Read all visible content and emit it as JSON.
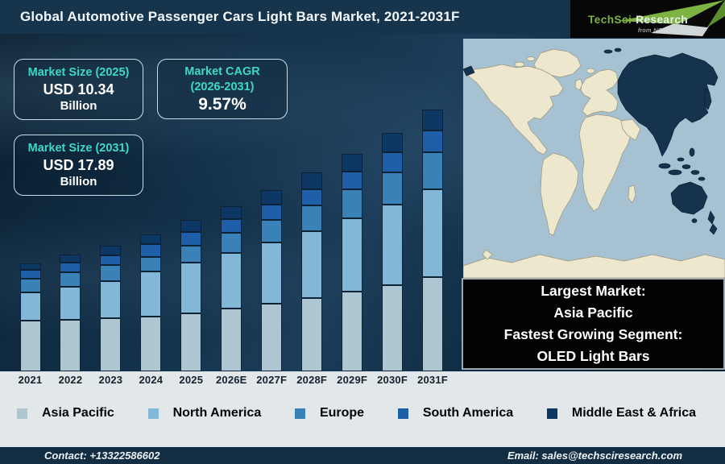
{
  "header": {
    "title": "Global Automotive Passenger Cars Light Bars Market, 2021-2031F",
    "logo": {
      "brand": "TechSci",
      "brand2": "Research",
      "tagline": "from NOW to NEXT"
    }
  },
  "stat_boxes": [
    {
      "label": "Market Size (2025)",
      "value": "USD 10.34",
      "unit": "Billion"
    },
    {
      "label": "Market CAGR",
      "label_line2": "(2026-2031)",
      "value": "9.57%"
    },
    {
      "label": "Market Size (2031)",
      "value": "USD 17.89",
      "unit": "Billion"
    }
  ],
  "chart_data": {
    "type": "bar",
    "stacked": true,
    "title": "Global Automotive Passenger Cars Light Bars Market, 2021-2031F",
    "unit": "USD Billion",
    "categories": [
      "2021",
      "2022",
      "2023",
      "2024",
      "2025",
      "2026E",
      "2027F",
      "2028F",
      "2029F",
      "2030F",
      "2031F"
    ],
    "series": [
      {
        "name": "Asia Pacific",
        "color": "#aec5d2",
        "values": [
          3.48,
          3.55,
          3.62,
          3.76,
          3.98,
          4.31,
          4.65,
          5.03,
          5.46,
          5.92,
          6.44
        ]
      },
      {
        "name": "North America",
        "color": "#82b7d8",
        "values": [
          1.92,
          2.24,
          2.58,
          3.06,
          3.44,
          3.82,
          4.17,
          4.57,
          4.99,
          5.47,
          6.01
        ]
      },
      {
        "name": "Europe",
        "color": "#3a81b8",
        "values": [
          0.93,
          0.98,
          1.05,
          1.02,
          1.16,
          1.33,
          1.53,
          1.74,
          1.98,
          2.24,
          2.54
        ]
      },
      {
        "name": "South America",
        "color": "#1f5ea9",
        "values": [
          0.59,
          0.66,
          0.69,
          0.85,
          0.93,
          0.95,
          1.05,
          1.14,
          1.25,
          1.36,
          1.47
        ]
      },
      {
        "name": "Middle East & Africa",
        "color": "#0d3765",
        "values": [
          0.48,
          0.57,
          0.67,
          0.71,
          0.83,
          0.92,
          1.01,
          1.12,
          1.22,
          1.34,
          1.43
        ]
      }
    ],
    "totals": [
      7.4,
      8.0,
      8.61,
      9.4,
      10.34,
      11.33,
      12.41,
      13.6,
      14.9,
      16.33,
      17.89
    ],
    "annotations": {
      "market_size_2025": "USD 10.34 Billion",
      "market_cagr_2026_2031": "9.57%",
      "market_size_2031": "USD 17.89 Billion"
    },
    "ylim": [
      0,
      18
    ],
    "grid": false,
    "legend_position": "bottom"
  },
  "map_panel": {
    "highlighted_region": "Asia Pacific",
    "colors": {
      "ocean": "#a6c2d2",
      "land": "#ede7ce",
      "highlight": "#16334e"
    }
  },
  "callout": {
    "lines": [
      "Largest Market:",
      "Asia Pacific",
      "Fastest Growing Segment:",
      "OLED Light Bars"
    ]
  },
  "footer": {
    "contact": "Contact: +13322586602",
    "email": "Email: sales@techsciresearch.com"
  },
  "colors": {
    "header_bg": "#16354c",
    "footer_bg": "#132e42",
    "strip_bg": "#e2e7e9",
    "accent_teal": "#3fd8c6",
    "callout_bg": "#030303",
    "logo_green": "#7cb342"
  }
}
